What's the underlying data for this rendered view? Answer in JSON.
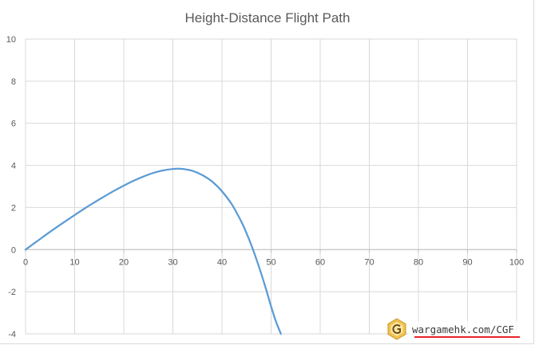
{
  "chart_data": {
    "type": "line",
    "title": "Height-Distance Flight Path",
    "xlabel": "",
    "ylabel": "",
    "xlim": [
      0,
      100
    ],
    "ylim": [
      -4,
      10
    ],
    "x_ticks": [
      0,
      10,
      20,
      30,
      40,
      50,
      60,
      70,
      80,
      90,
      100
    ],
    "y_ticks": [
      -4,
      -2,
      0,
      2,
      4,
      6,
      8,
      10
    ],
    "grid": true,
    "legend": "none",
    "series": [
      {
        "color": "#5b9bd5",
        "x": [
          0,
          2,
          4,
          6,
          8,
          10,
          12,
          14,
          16,
          18,
          20,
          22,
          24,
          26,
          28,
          30,
          31,
          32,
          34,
          36,
          38,
          40,
          42,
          44,
          45,
          46,
          47,
          48,
          49,
          50,
          51,
          52
        ],
        "y": [
          0,
          0.34,
          0.68,
          1.01,
          1.33,
          1.64,
          1.95,
          2.24,
          2.52,
          2.79,
          3.04,
          3.27,
          3.47,
          3.64,
          3.76,
          3.83,
          3.84,
          3.83,
          3.74,
          3.54,
          3.23,
          2.77,
          2.15,
          1.3,
          0.78,
          0.2,
          -0.45,
          -1.15,
          -1.9,
          -2.7,
          -3.42,
          -4.0
        ]
      }
    ]
  },
  "watermark": {
    "text": "wargamehk.com/CGF",
    "icon": "g-logo-icon",
    "underline_color": "#e8232a"
  },
  "colors": {
    "gridline": "#d9d9d9",
    "axis_text": "#595959",
    "series": "#5b9bd5"
  }
}
